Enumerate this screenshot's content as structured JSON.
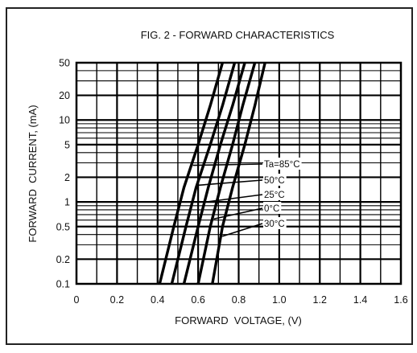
{
  "chart_data": {
    "type": "line",
    "title": "FIG. 2 - FORWARD CHARACTERISTICS",
    "xlabel": "FORWARD  VOLTAGE, (V)",
    "ylabel": "FORWARD  CURRENT, (mA)",
    "xlim": [
      0,
      1.6
    ],
    "ylim": [
      0.1,
      50
    ],
    "yscale": "log",
    "grid": true,
    "xticks": [
      "0",
      "0.2",
      "0.4",
      "0.6",
      "0.8",
      "1.0",
      "1.2",
      "1.4",
      "1.6"
    ],
    "yticks": [
      "0.1",
      "0.2",
      "0.5",
      "1",
      "2",
      "5",
      "10",
      "20",
      "50"
    ],
    "series": [
      {
        "name": "Ta=85°C",
        "points": [
          [
            0.41,
            0.1
          ],
          [
            0.48,
            0.5
          ],
          [
            0.53,
            1.5
          ],
          [
            0.6,
            5
          ],
          [
            0.66,
            15
          ],
          [
            0.72,
            50
          ]
        ]
      },
      {
        "name": "50°C",
        "points": [
          [
            0.47,
            0.1
          ],
          [
            0.54,
            0.5
          ],
          [
            0.59,
            1.5
          ],
          [
            0.66,
            5
          ],
          [
            0.72,
            15
          ],
          [
            0.78,
            50
          ]
        ]
      },
      {
        "name": "25°C",
        "points": [
          [
            0.53,
            0.1
          ],
          [
            0.6,
            0.5
          ],
          [
            0.65,
            1.5
          ],
          [
            0.71,
            5
          ],
          [
            0.77,
            15
          ],
          [
            0.83,
            50
          ]
        ]
      },
      {
        "name": "0°C",
        "points": [
          [
            0.6,
            0.1
          ],
          [
            0.66,
            0.5
          ],
          [
            0.71,
            1.5
          ],
          [
            0.77,
            5
          ],
          [
            0.82,
            15
          ],
          [
            0.88,
            50
          ]
        ]
      },
      {
        "name": "30°C",
        "points": [
          [
            0.67,
            0.1
          ],
          [
            0.72,
            0.5
          ],
          [
            0.77,
            1.5
          ],
          [
            0.83,
            5
          ],
          [
            0.88,
            15
          ],
          [
            0.93,
            50
          ]
        ]
      }
    ]
  }
}
